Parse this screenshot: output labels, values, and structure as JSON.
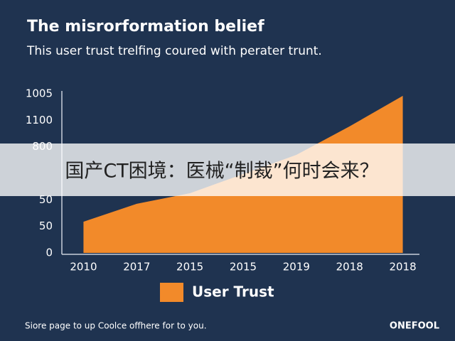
{
  "chart_data": {
    "type": "area",
    "title": "The misrorformation belief",
    "subtitle": "This user trust trelfing coured with perater trunt.",
    "categories": [
      "2010",
      "2017",
      "2015",
      "2015",
      "2019",
      "2018",
      "2018"
    ],
    "series": [
      {
        "name": "User Trust",
        "color": "#f28a2a",
        "values": [
          197,
          310,
          377,
          498,
          619,
          799,
          992
        ]
      }
    ],
    "ylim": [
      0,
      1005
    ],
    "y_axis_labels": [
      "0",
      "50",
      "50",
      null,
      "800",
      "1100",
      "1005"
    ],
    "footer": "Siore page to up Coolce offhere for to you.",
    "brand": "ONEFOOL"
  },
  "banner": {
    "text": "国产CT困境：医械“制裁”何时会来？"
  }
}
